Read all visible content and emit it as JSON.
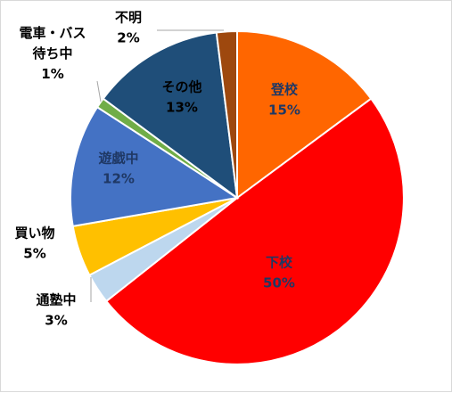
{
  "chart_data": {
    "type": "pie",
    "slices": [
      {
        "label": "登校",
        "value": 15,
        "pct_label": "15%",
        "color": "#FF6600",
        "text_color": "#1F3864"
      },
      {
        "label": "下校",
        "value": 50,
        "pct_label": "50%",
        "color": "#FF0000",
        "text_color": "#1F3864"
      },
      {
        "label": "通塾中",
        "value": 3,
        "pct_label": "3%",
        "color": "#BDD7EE",
        "text_color": "#000000"
      },
      {
        "label": "買い物",
        "value": 5,
        "pct_label": "5%",
        "color": "#FFC000",
        "text_color": "#000000"
      },
      {
        "label": "遊戯中",
        "value": 12,
        "pct_label": "12%",
        "color": "#4472C4",
        "text_color": "#1F3864"
      },
      {
        "label": "電車・バス待ち中",
        "value": 1,
        "pct_label": "1%",
        "color": "#70AD47",
        "text_color": "#000000"
      },
      {
        "label": "その他",
        "value": 13,
        "pct_label": "13%",
        "color": "#1F4E79",
        "text_color": "#000000"
      },
      {
        "label": "不明",
        "value": 2,
        "pct_label": "2%",
        "color": "#9E480E",
        "text_color": "#000000"
      }
    ]
  }
}
